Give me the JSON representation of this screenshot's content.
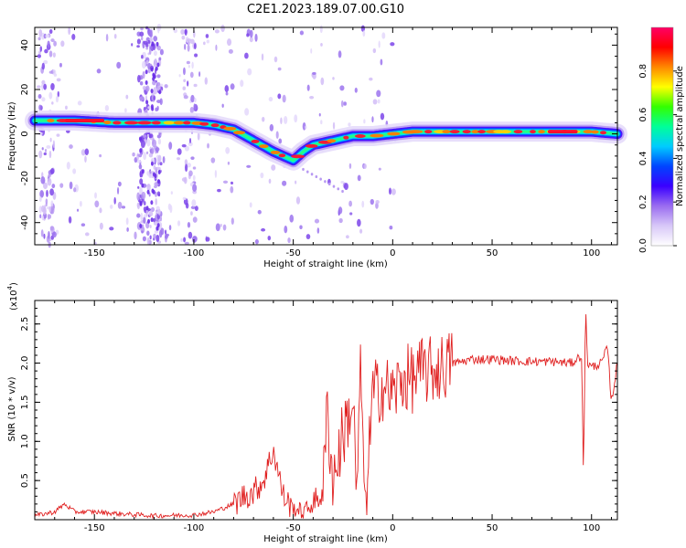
{
  "figure_title": "C2E1.2023.189.07.00.G10",
  "chart_data": [
    {
      "type": "heatmap",
      "xlabel": "Height of straight line (km)",
      "ylabel": "Frequency (Hz)",
      "xlim": [
        -180,
        113
      ],
      "ylim": [
        -50,
        48
      ],
      "xticks": [
        -150,
        -100,
        -50,
        0,
        50,
        100
      ],
      "yticks": [
        -40,
        -20,
        0,
        20,
        40
      ],
      "colorbar": {
        "label": "Normalized spectral amplitude",
        "range": [
          0,
          1
        ],
        "ticks": [
          "0.0",
          "0.2",
          "0.4",
          "0.6",
          "0.8"
        ],
        "colors": [
          "#ffffff",
          "#d8c8f8",
          "#9a6cf0",
          "#3a00ff",
          "#0044ff",
          "#00ccff",
          "#00ff99",
          "#33ff00",
          "#ffff00",
          "#ff8800",
          "#ff0000",
          "#ff0066"
        ]
      },
      "ridge": {
        "x": [
          -180,
          -160,
          -140,
          -120,
          -100,
          -90,
          -80,
          -70,
          -60,
          -55,
          -50,
          -45,
          -40,
          -30,
          -20,
          -10,
          0,
          10,
          20,
          40,
          60,
          80,
          100,
          113
        ],
        "y": [
          6,
          6,
          5,
          5,
          5,
          4,
          2,
          -3,
          -8,
          -10,
          -12,
          -8,
          -5,
          -3,
          -1,
          -1,
          0,
          1,
          1,
          1,
          1,
          1,
          1,
          0
        ]
      }
    },
    {
      "type": "line",
      "xlabel": "Height of straight line (km)",
      "ylabel": "SNR (10 * v/v)",
      "y_multiplier": "(x10",
      "y_multiplier_exp": "4",
      "xlim": [
        -180,
        113
      ],
      "ylim": [
        0,
        2.8
      ],
      "xticks": [
        -150,
        -100,
        -50,
        0,
        50,
        100
      ],
      "yticks": [
        "0.5",
        "1.0",
        "1.5",
        "2.0",
        "2.5"
      ],
      "color": "#e02020",
      "series": [
        {
          "x": [
            -180,
            -170,
            -165,
            -160,
            -150,
            -140,
            -120,
            -100,
            -90,
            -80,
            -75,
            -70,
            -65,
            -60,
            -55,
            -50,
            -45,
            -40,
            -35,
            -33,
            -30,
            -25,
            -20,
            -18,
            -16,
            -14,
            -10,
            -5,
            0,
            5,
            10,
            15,
            20,
            25,
            30,
            35,
            40,
            50,
            60,
            70,
            80,
            90,
            95,
            96,
            97,
            98,
            100,
            105,
            108,
            110,
            113
          ],
          "y": [
            0.05,
            0.1,
            0.2,
            0.1,
            0.1,
            0.08,
            0.05,
            0.06,
            0.1,
            0.2,
            0.3,
            0.35,
            0.5,
            0.9,
            0.3,
            0.15,
            0.1,
            0.2,
            0.35,
            1.4,
            0.5,
            1.1,
            1.5,
            0.3,
            2.0,
            0.1,
            1.6,
            1.7,
            1.6,
            1.8,
            1.8,
            1.9,
            1.9,
            1.95,
            2.0,
            2.02,
            2.05,
            2.05,
            2.03,
            2.02,
            2.02,
            2.0,
            2.1,
            0.5,
            2.8,
            2.0,
            1.95,
            2.0,
            2.2,
            1.5,
            2.0
          ]
        }
      ]
    }
  ]
}
